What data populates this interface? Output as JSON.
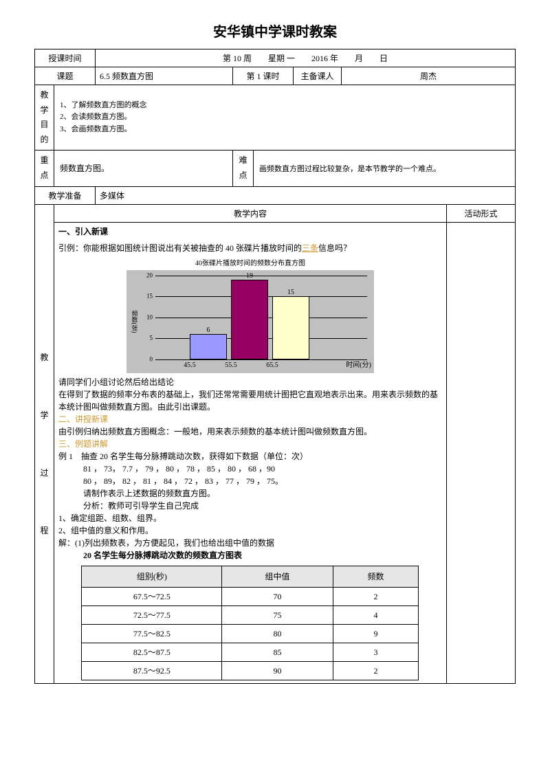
{
  "page_title": "安华镇中学课时教案",
  "header": {
    "time_label": "授课时间",
    "time_value": "第 10 周　　星期 一　　2016 年　　月　　日",
    "topic_label": "课题",
    "topic_value": "6.5 频数直方图",
    "period_label": "第 1 课时",
    "author_label": "主备课人",
    "author_value": "周杰"
  },
  "objectives": {
    "label": "教学目的",
    "lines": [
      "1、了解频数直方图的概念",
      "2、会读频数直方图。",
      "3、会画频数直方图。"
    ]
  },
  "key": {
    "key_label": "重点",
    "key_value": "频数直方图。",
    "diff_label": "难点",
    "diff_value": "画频数直方图过程比较复杂，是本节教学的一个难点。"
  },
  "prep": {
    "label": "教学准备",
    "value": "多媒体"
  },
  "columns": {
    "content": "教学内容",
    "activity": "活动形式"
  },
  "side_label": "教学过程",
  "content": {
    "s1": "一、引入新课",
    "intro": "引例：你能根据如图统计图说出有关被抽查的 40 张碟片播放时间的",
    "intro_hl": "三条",
    "intro2": "信息吗？",
    "chart": {
      "title": "40张碟片播放时间的频数分布直方图",
      "ylabel": "频数(张)",
      "yticks": [
        0,
        5,
        10,
        15,
        20
      ],
      "ymax": 20,
      "categories": [
        "45.5",
        "55.5",
        "65.5"
      ],
      "values": [
        6,
        19,
        15
      ],
      "bar_colors": [
        "#9999ff",
        "#990066",
        "#ffffcc"
      ],
      "xlabel": "时间(分)",
      "bg": "#c0c0c0"
    },
    "p1": "请同学们小组讨论然后给出结论",
    "p2": "在得到了数据的频率分布表的基础上，我们还常常需要用统计图把它直观地表示出来。用来表示频数的基本统计图叫做频数直方图。由此引出课题。",
    "s2": "二、讲授新课",
    "p3": "由引例归纳出频数直方图概念：一般地，用来表示频数的基本统计图叫做频数直方图。",
    "s3": "三、例题讲解",
    "ex_label": "例 1　抽查 20 名学生每分脉搏跳动次数，获得如下数据（单位：次）",
    "data1": "81 ， 73， 7.7 ， 79 ， 80 ， 78 ， 85 ， 80 ， 68 ，90",
    "data2": "80 ， 89， 82 ， 81 ， 84 ， 72 ， 83 ， 77 ， 79 ， 75。",
    "task": "请制作表示上述数据的频数直方图。",
    "analysis": "分析：教师可引导学生自己完成",
    "b1": "1、确定组距、组数、组界。",
    "b2": "2、组中值的意义和作用。",
    "sol": "解：(1)列出频数表，为方便起见，我们也给出组中值的数据",
    "table_title": "20 名学生每分脉搏跳动次数的频数直方图表",
    "table": {
      "headers": [
        "组别(秒)",
        "组中值",
        "频数"
      ],
      "rows": [
        [
          "67.5～72.5",
          "70",
          "2"
        ],
        [
          "72.5～77.5",
          "75",
          "4"
        ],
        [
          "77.5～82.5",
          "80",
          "9"
        ],
        [
          "82.5～87.5",
          "85",
          "3"
        ],
        [
          "87.5～92.5",
          "90",
          "2"
        ]
      ]
    }
  }
}
